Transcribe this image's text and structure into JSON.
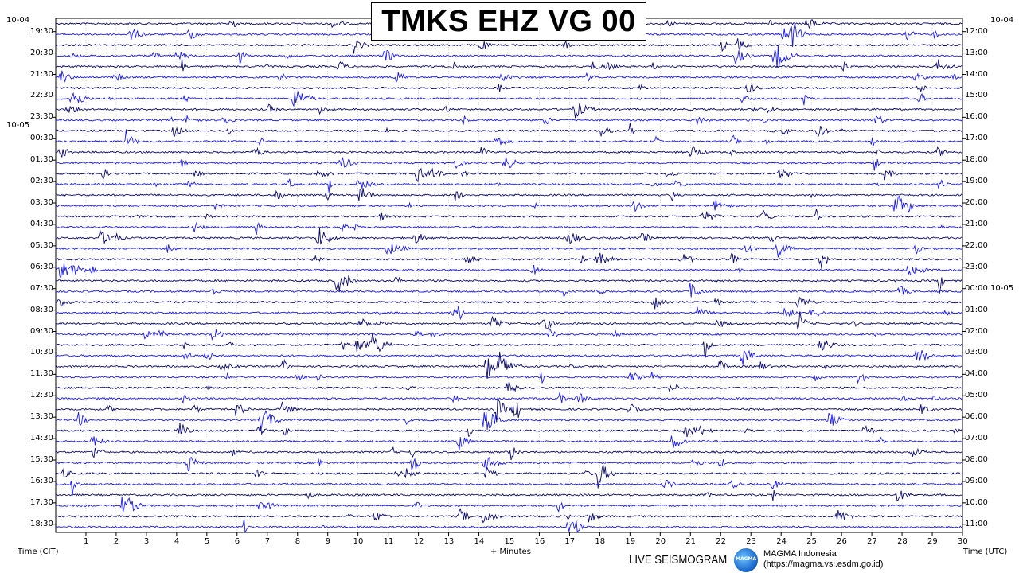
{
  "title": "TMKS EHZ VG 00",
  "left_axis": {
    "date_start": "10-04",
    "date_change": "10-05",
    "times": [
      "19:30",
      "20:30",
      "21:30",
      "22:30",
      "23:30",
      "00:30",
      "01:30",
      "02:30",
      "03:30",
      "04:30",
      "05:30",
      "06:30",
      "07:30",
      "08:30",
      "09:30",
      "10:30",
      "11:30",
      "12:30",
      "13:30",
      "14:30",
      "15:30",
      "16:30",
      "17:30",
      "18:30"
    ],
    "label": "Time (CIT)"
  },
  "right_axis": {
    "date_start": "10-04",
    "times": [
      "12:00",
      "13:00",
      "14:00",
      "15:00",
      "16:00",
      "17:00",
      "18:00",
      "19:00",
      "20:00",
      "21:00",
      "22:00",
      "23:00",
      "00:00 10-05",
      "01:00",
      "02:00",
      "03:00",
      "04:00",
      "05:00",
      "06:00",
      "07:00",
      "08:00",
      "09:00",
      "10:00",
      "11:00"
    ],
    "label": "Time (UTC)"
  },
  "x_axis": {
    "ticks": [
      "1",
      "2",
      "3",
      "4",
      "5",
      "6",
      "7",
      "8",
      "9",
      "10",
      "11",
      "12",
      "13",
      "14",
      "15",
      "16",
      "17",
      "18",
      "19",
      "20",
      "21",
      "22",
      "23",
      "24",
      "25",
      "26",
      "27",
      "28",
      "29",
      "30"
    ],
    "label": "+ Minutes"
  },
  "footer": {
    "live": "LIVE SEISMOGRAM",
    "logo_text": "MAGMA",
    "org_name": "MAGMA Indonesia",
    "org_url": "(https://magma.vsi.esdm.go.id)"
  },
  "colors": {
    "trace_a": "#0b0b6e",
    "trace_b": "#1c1cf0",
    "grid": "#b8b8b8"
  },
  "chart_data": {
    "type": "line",
    "title": "TMKS EHZ VG 00",
    "xlabel": "+ Minutes",
    "ylabel_left": "Time (CIT)",
    "ylabel_right": "Time (UTC)",
    "xlim": [
      0,
      30
    ],
    "rows_per_hour": 2,
    "row_minutes": 30,
    "hours": 24,
    "trace_colors": [
      "#0b0b6e",
      "#1c1cf0"
    ],
    "grid": true
  }
}
